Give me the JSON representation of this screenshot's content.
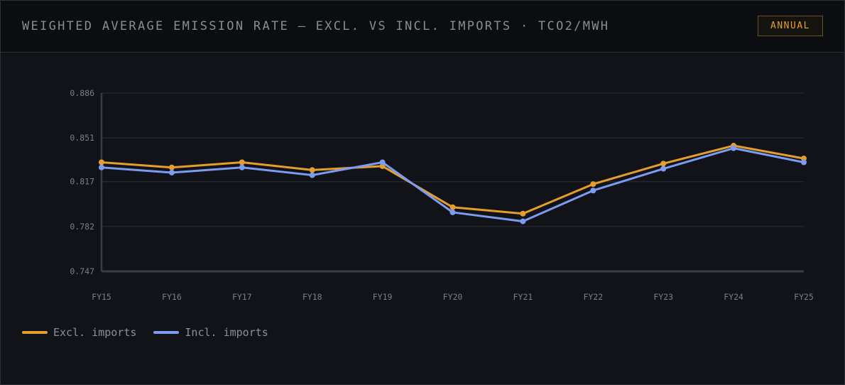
{
  "header": {
    "title": "WEIGHTED AVERAGE EMISSION RATE — EXCL. VS INCL. IMPORTS · TCO2/MWH",
    "badge": "ANNUAL"
  },
  "chart_data": {
    "type": "line",
    "x": [
      "FY15",
      "FY16",
      "FY17",
      "FY18",
      "FY19",
      "FY20",
      "FY21",
      "FY22",
      "FY23",
      "FY24",
      "FY25"
    ],
    "ylim": [
      0.747,
      0.886
    ],
    "yticks": [
      "0.886",
      "0.851",
      "0.817",
      "0.782",
      "0.747"
    ],
    "grid": true,
    "legend_position": "bottom-left",
    "series": [
      {
        "name": "Excl. imports",
        "color": "#e39e2c",
        "values": [
          0.832,
          0.828,
          0.832,
          0.826,
          0.829,
          0.797,
          0.792,
          0.815,
          0.831,
          0.845,
          0.835
        ]
      },
      {
        "name": "Incl. imports",
        "color": "#7b9cf0",
        "values": [
          0.828,
          0.824,
          0.828,
          0.822,
          0.832,
          0.793,
          0.786,
          0.81,
          0.827,
          0.843,
          0.832
        ]
      }
    ]
  }
}
